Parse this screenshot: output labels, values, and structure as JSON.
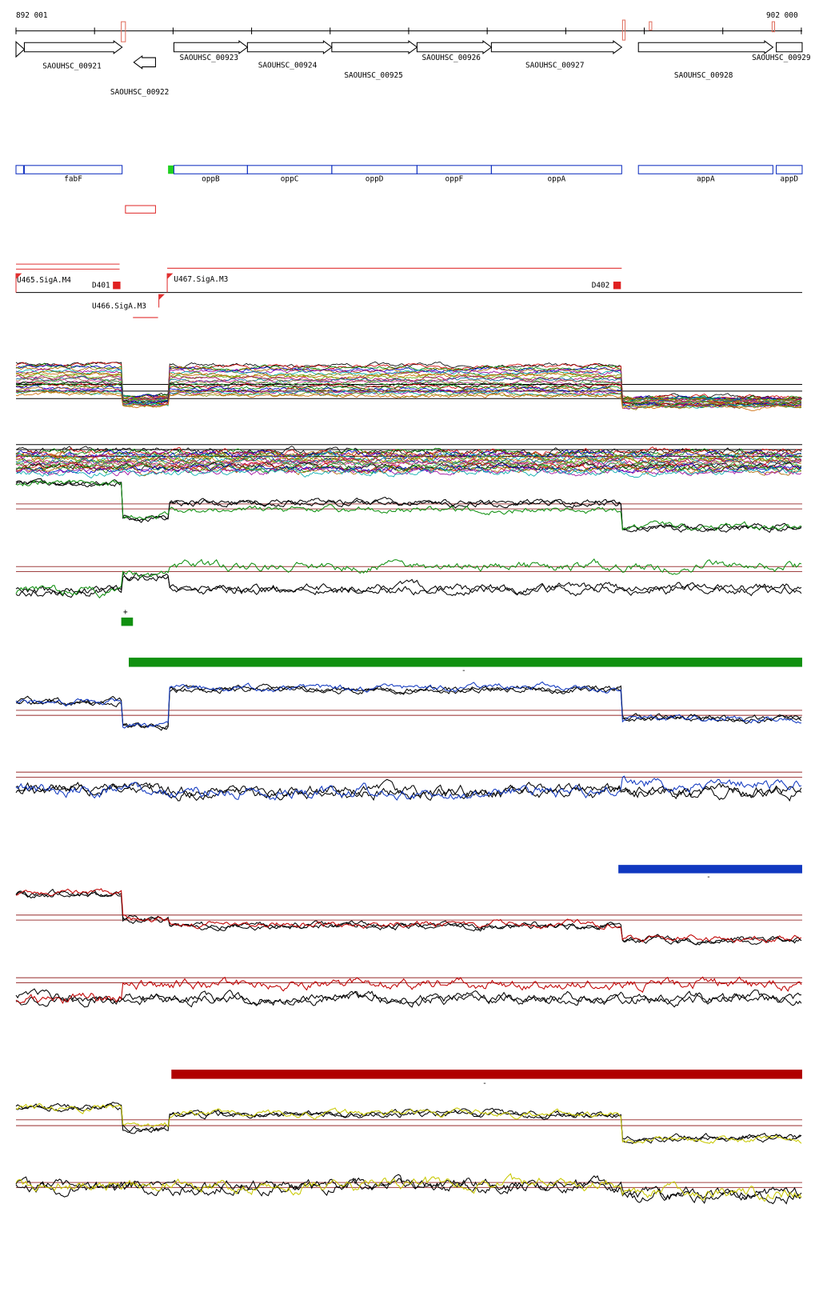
{
  "header": {
    "start": "892 001",
    "end": "902 000"
  },
  "genes": [
    "SAOUHSC_00921",
    "SAOUHSC_00922",
    "SAOUHSC_00923",
    "SAOUHSC_00924",
    "SAOUHSC_00925",
    "SAOUHSC_00926",
    "SAOUHSC_00927",
    "SAOUHSC_00928",
    "SAOUHSC_00929"
  ],
  "features": [
    "fabF",
    "oppB",
    "oppC",
    "oppD",
    "oppF",
    "oppA",
    "appA",
    "appD"
  ],
  "promoters": [
    "U465.SigA.M4",
    "D401",
    "U466.SigA.M3",
    "U467.SigA.M3",
    "D402"
  ],
  "strand_labels": [
    "+",
    "-",
    "-",
    "-"
  ]
}
